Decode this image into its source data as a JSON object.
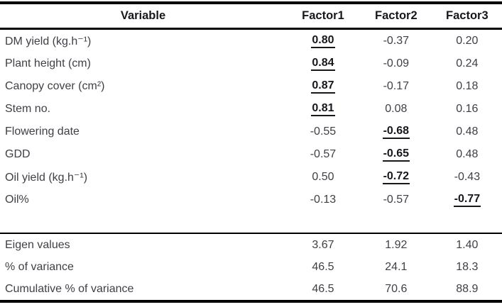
{
  "chart_data": {
    "type": "table",
    "columns": [
      "Variable",
      "Factor1",
      "Factor2",
      "Factor3"
    ],
    "rows": [
      [
        "DM yield (kg.h⁻¹)",
        0.8,
        -0.37,
        0.2
      ],
      [
        "Plant height (cm)",
        0.84,
        -0.09,
        0.24
      ],
      [
        "Canopy cover (cm²)",
        0.87,
        -0.17,
        0.18
      ],
      [
        "Stem no.",
        0.81,
        0.08,
        0.16
      ],
      [
        "Flowering date",
        -0.55,
        -0.68,
        0.48
      ],
      [
        "GDD",
        -0.57,
        -0.65,
        0.48
      ],
      [
        "Oil yield (kg.h⁻¹)",
        0.5,
        -0.72,
        -0.43
      ],
      [
        "Oil%",
        -0.13,
        -0.57,
        -0.77
      ]
    ],
    "summary_rows": [
      [
        "Eigen values",
        3.67,
        1.92,
        1.4
      ],
      [
        "% of variance",
        46.5,
        24.1,
        18.3
      ],
      [
        "Cumulative % of variance",
        46.5,
        70.6,
        88.9
      ]
    ],
    "bold_underlined_cells_note": "index of emphasized factor per variable row",
    "emphasized_factor_index": [
      0,
      0,
      0,
      0,
      1,
      1,
      1,
      2
    ]
  },
  "table": {
    "headers": [
      "Variable",
      "Factor1",
      "Factor2",
      "Factor3"
    ],
    "rows": [
      {
        "label": "DM yield (kg.h⁻¹)",
        "values": [
          "0.80",
          "-0.37",
          "0.20"
        ],
        "sig": 0
      },
      {
        "label": "Plant height (cm)",
        "values": [
          "0.84",
          "-0.09",
          "0.24"
        ],
        "sig": 0
      },
      {
        "label": "Canopy cover (cm²)",
        "values": [
          "0.87",
          "-0.17",
          "0.18"
        ],
        "sig": 0
      },
      {
        "label": "Stem no.",
        "values": [
          "0.81",
          "0.08",
          "0.16"
        ],
        "sig": 0
      },
      {
        "label": "Flowering date",
        "values": [
          "-0.55",
          "-0.68",
          "0.48"
        ],
        "sig": 1
      },
      {
        "label": "GDD",
        "values": [
          "-0.57",
          "-0.65",
          "0.48"
        ],
        "sig": 1
      },
      {
        "label": "Oil yield (kg.h⁻¹)",
        "values": [
          "0.50",
          "-0.72",
          "-0.43"
        ],
        "sig": 1
      },
      {
        "label": "Oil%",
        "values": [
          "-0.13",
          "-0.57",
          "-0.77"
        ],
        "sig": 2
      }
    ],
    "summary_rows": [
      {
        "label": "Eigen values",
        "values": [
          "3.67",
          "1.92",
          "1.40"
        ],
        "sig": null
      },
      {
        "label": "% of variance",
        "values": [
          "46.5",
          "24.1",
          "18.3"
        ],
        "sig": null
      },
      {
        "label": "Cumulative % of variance",
        "values": [
          "46.5",
          "70.6",
          "88.9"
        ],
        "sig": null
      }
    ]
  },
  "colors": {
    "text": "#3f4046",
    "emphasis": "#17181d",
    "line": "#000000"
  }
}
